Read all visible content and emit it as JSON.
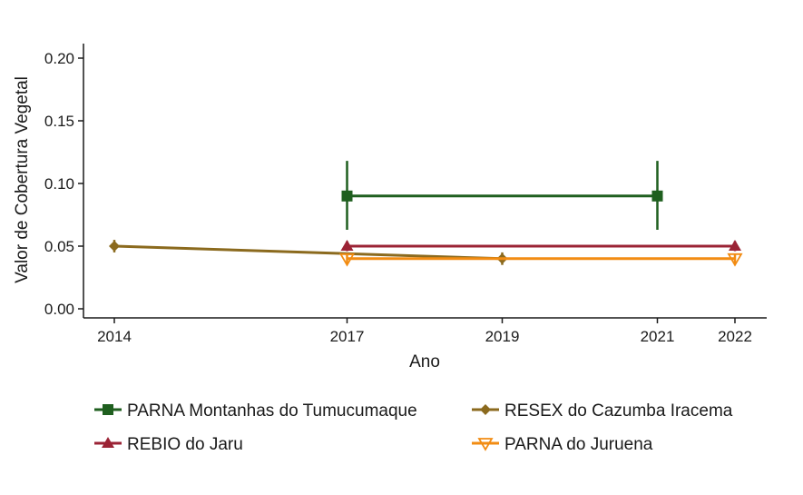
{
  "chart_data": {
    "type": "line",
    "title": "",
    "xlabel": "Ano",
    "ylabel": "Valor de Cobertura Vegetal",
    "xlim": [
      2014,
      2022
    ],
    "ylim": [
      0,
      0.2
    ],
    "xticks": [
      "2014",
      "2017",
      "2019",
      "2021",
      "2022"
    ],
    "yticks": [
      "0.00",
      "0.05",
      "0.10",
      "0.15",
      "0.20"
    ],
    "grid": false,
    "legend_position": "bottom",
    "series": [
      {
        "name": "PARNA Montanhas do Tumucumaque",
        "color": "#1f5f1f",
        "marker": "square",
        "points": [
          {
            "x": 2017,
            "y": 0.09,
            "lo": 0.063,
            "hi": 0.118
          },
          {
            "x": 2021,
            "y": 0.09,
            "lo": 0.063,
            "hi": 0.118
          }
        ]
      },
      {
        "name": "RESEX do Cazumba Iracema",
        "color": "#8b6a1e",
        "marker": "diamond",
        "points": [
          {
            "x": 2014,
            "y": 0.05,
            "lo": 0.045,
            "hi": 0.055
          },
          {
            "x": 2019,
            "y": 0.04,
            "lo": 0.035,
            "hi": 0.045
          }
        ]
      },
      {
        "name": "REBIO do Jaru",
        "color": "#9b2335",
        "marker": "triangle-up",
        "points": [
          {
            "x": 2017,
            "y": 0.05,
            "lo": 0.046,
            "hi": 0.054
          },
          {
            "x": 2022,
            "y": 0.05,
            "lo": 0.046,
            "hi": 0.054
          }
        ]
      },
      {
        "name": "PARNA do Juruena",
        "color": "#f28c13",
        "marker": "triangle-down-open",
        "points": [
          {
            "x": 2017,
            "y": 0.04,
            "lo": 0.036,
            "hi": 0.044
          },
          {
            "x": 2022,
            "y": 0.04,
            "lo": 0.036,
            "hi": 0.044
          }
        ]
      }
    ]
  }
}
